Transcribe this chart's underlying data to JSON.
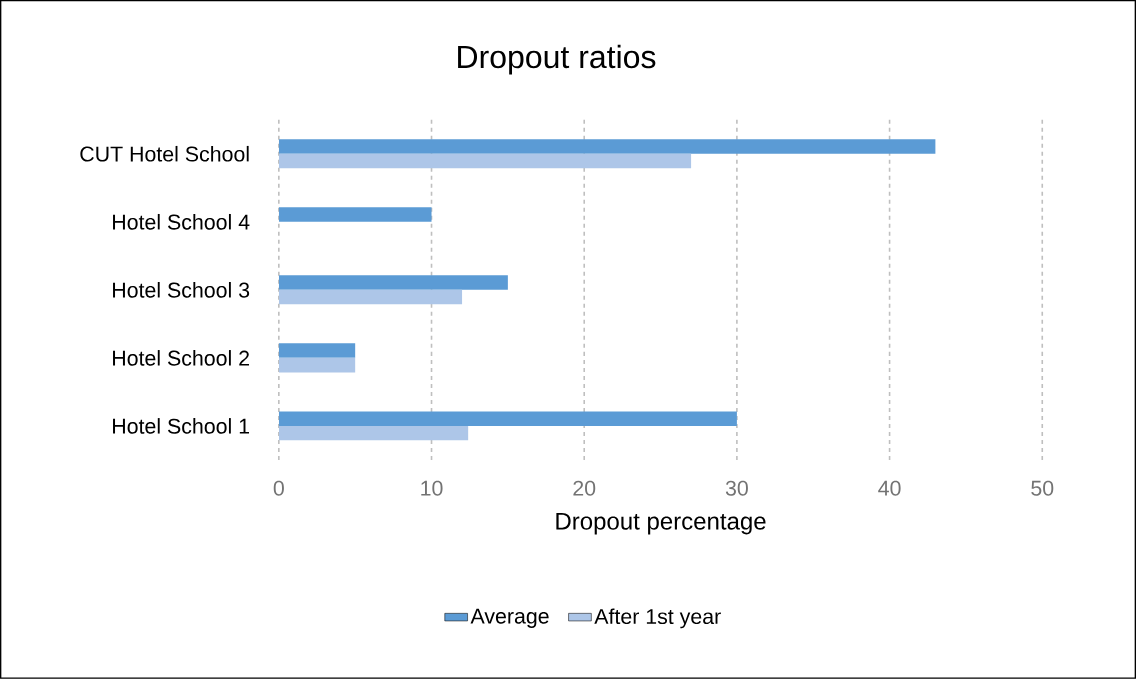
{
  "chart_data": {
    "type": "bar",
    "orientation": "horizontal",
    "title": "Dropout ratios",
    "xlabel": "Dropout percentage",
    "categories": [
      "CUT Hotel School",
      "Hotel School 4",
      "Hotel School 3",
      "Hotel School 2",
      "Hotel School 1"
    ],
    "series": [
      {
        "name": "Average",
        "color": "#5b9bd5",
        "values": [
          43,
          10,
          15,
          5,
          30
        ]
      },
      {
        "name": "After 1st year",
        "color": "#adc6e8",
        "values": [
          27,
          null,
          12,
          5,
          12.4
        ]
      }
    ],
    "xlim": [
      0,
      50
    ],
    "xticks": [
      0,
      10,
      20,
      30,
      40,
      50
    ],
    "grid": "x",
    "legend": "bottom"
  }
}
